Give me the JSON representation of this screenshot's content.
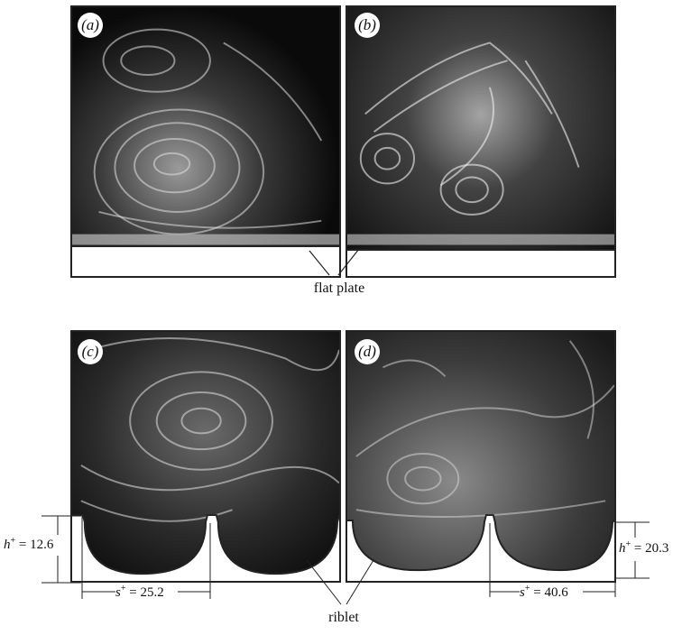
{
  "panels": {
    "a": {
      "tag": "(a)",
      "kind": "flat plate"
    },
    "b": {
      "tag": "(b)",
      "kind": "flat plate"
    },
    "c": {
      "tag": "(c)",
      "kind": "riblet"
    },
    "d": {
      "tag": "(d)",
      "kind": "riblet"
    }
  },
  "labels": {
    "flat_plate": "flat plate",
    "riblet": "riblet"
  },
  "measurements": {
    "c_h": {
      "symbol": "h",
      "sup": "+",
      "value": " = 12.6"
    },
    "c_s": {
      "symbol": "s",
      "sup": "+",
      "value": " = 25.2"
    },
    "d_h": {
      "symbol": "h",
      "sup": "+",
      "value": " = 20.3"
    },
    "d_s": {
      "symbol": "s",
      "sup": "+",
      "value": " = 40.6"
    }
  },
  "colors": {
    "frame": "#222222",
    "background": "#ffffff",
    "photo_dark": "#0b0b0b",
    "photo_light": "#d8d8d8"
  }
}
